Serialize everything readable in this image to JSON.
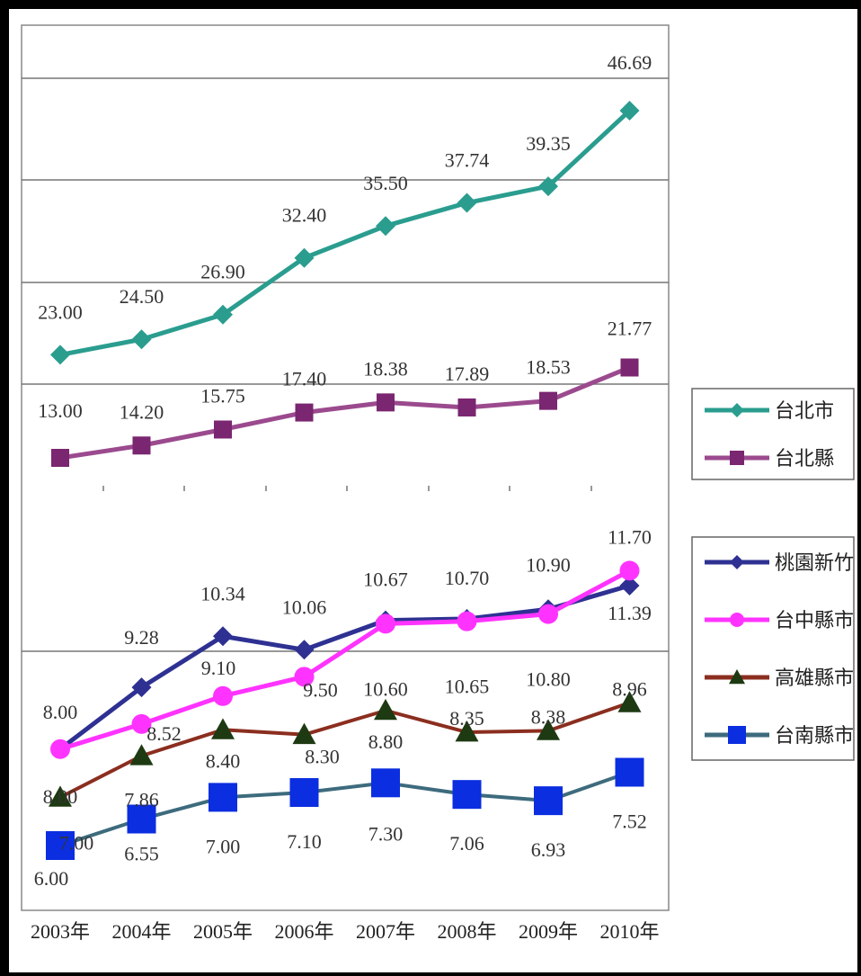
{
  "chart_data": {
    "type": "line",
    "categories": [
      "2003年",
      "2004年",
      "2005年",
      "2006年",
      "2007年",
      "2008年",
      "2009年",
      "2010年"
    ],
    "upper_panel": {
      "series": [
        {
          "name": "台北市",
          "color": "#2a9d8f",
          "marker": "diamond",
          "values": [
            23.0,
            24.5,
            26.9,
            32.4,
            35.5,
            37.74,
            39.35,
            46.69
          ],
          "labels": [
            "23.00",
            "24.50",
            "26.90",
            "32.40",
            "35.50",
            "37.74",
            "39.35",
            "46.69"
          ]
        },
        {
          "name": "台北縣",
          "color": "#8e3a80",
          "marker": "square",
          "values": [
            13.0,
            14.2,
            15.75,
            17.4,
            18.38,
            17.89,
            18.53,
            21.77
          ],
          "labels": [
            "13.00",
            "14.20",
            "15.75",
            "17.40",
            "18.38",
            "17.89",
            "18.53",
            "21.77"
          ]
        }
      ]
    },
    "lower_panel": {
      "series": [
        {
          "name": "桃園新竹",
          "color": "#2e3192",
          "marker": "diamond",
          "values": [
            8.0,
            9.28,
            10.34,
            10.06,
            10.67,
            10.7,
            10.9,
            11.39
          ],
          "labels": [
            "8.00",
            "9.28",
            "10.34",
            "10.06",
            "10.67",
            "10.70",
            "10.90",
            "11.39"
          ]
        },
        {
          "name": "台中縣市",
          "color": "#ff33ff",
          "marker": "circle",
          "values": [
            8.0,
            8.52,
            9.1,
            9.5,
            10.6,
            10.65,
            10.8,
            11.7
          ],
          "labels": [
            "8.00",
            "8.52",
            "9.10",
            "9.50",
            "10.60",
            "10.65",
            "10.80",
            "11.70"
          ]
        },
        {
          "name": "高雄縣市",
          "color": "#8b2e1f",
          "marker": "triangle",
          "values": [
            7.0,
            7.86,
            8.4,
            8.3,
            8.8,
            8.35,
            8.38,
            8.96
          ],
          "labels": [
            "7.00",
            "7.86",
            "8.40",
            "8.30",
            "8.80",
            "8.35",
            "8.38",
            "8.96"
          ]
        },
        {
          "name": "台南縣市",
          "color": "#3d6b7d",
          "marker": "square",
          "values": [
            6.0,
            6.55,
            7.0,
            7.1,
            7.3,
            7.06,
            6.93,
            7.52
          ],
          "labels": [
            "6.00",
            "6.55",
            "7.00",
            "7.10",
            "7.30",
            "7.06",
            "6.93",
            "7.52"
          ]
        }
      ]
    },
    "grid": true,
    "legend_placement": "right"
  }
}
